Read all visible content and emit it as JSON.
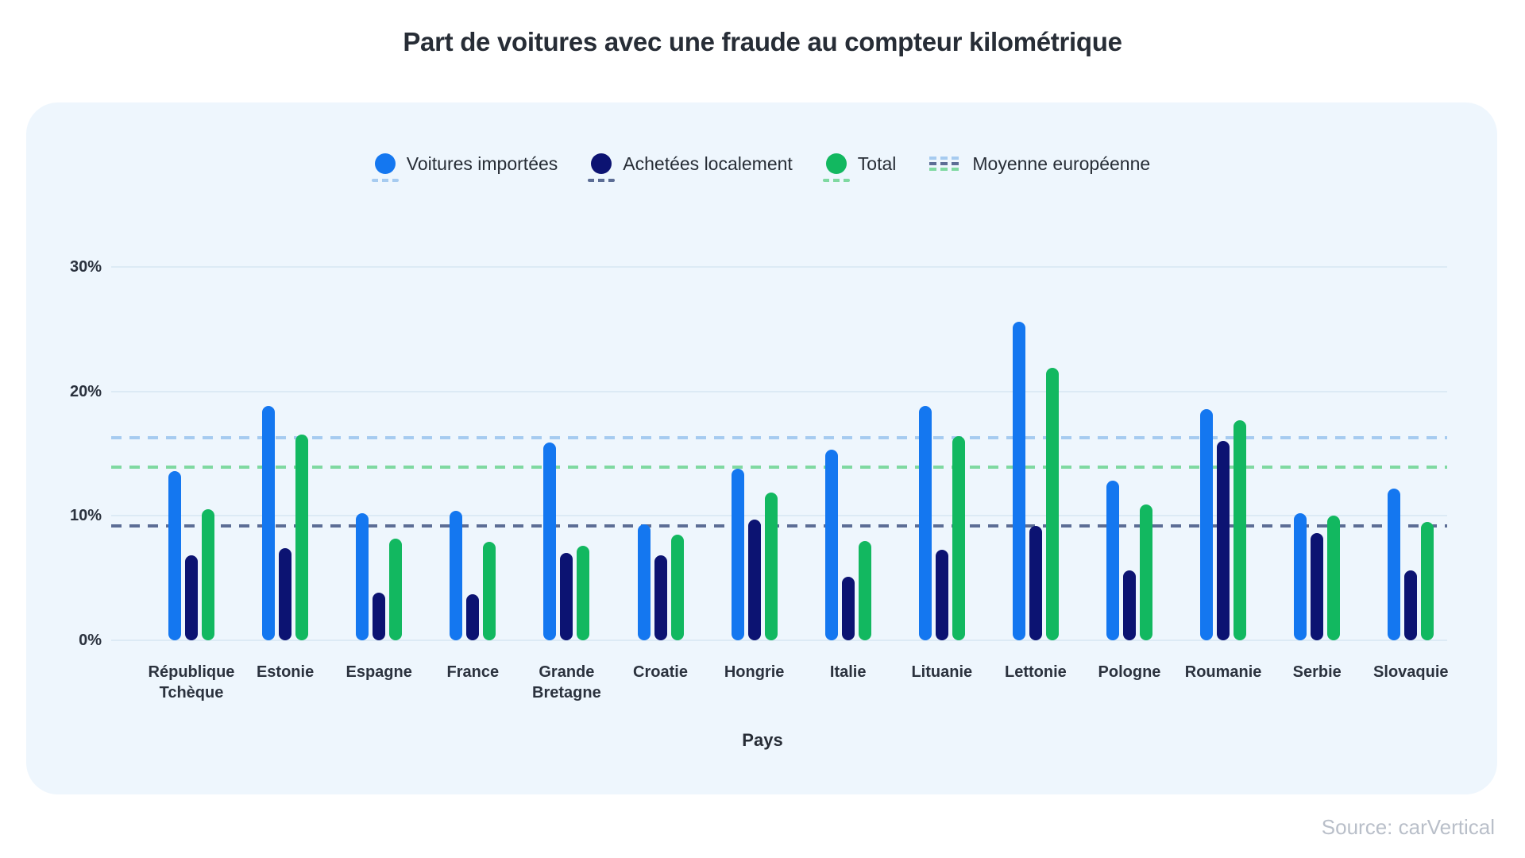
{
  "title": "Part de voitures avec une fraude au compteur kilométrique",
  "source": "Source: carVertical",
  "legend": {
    "imported_label": "Voitures importées",
    "local_label": "Achetées localement",
    "total_label": "Total",
    "average_label": "Moyenne européenne"
  },
  "colors": {
    "imported": "#1477f0",
    "local": "#0c1372",
    "total": "#12b860",
    "avg_imported": "#a6cbf0",
    "avg_total": "#7fd9a1",
    "avg_local": "#5c6d95",
    "grid": "#dceaf5",
    "card_bg": "#eef6fd",
    "title_text": "#272d36",
    "tick_text": "#2b323e",
    "source_text": "#b9bfc9"
  },
  "chart_data": {
    "type": "bar",
    "title": "Part de voitures avec une fraude au compteur kilométrique",
    "xlabel": "Pays",
    "ylabel": "",
    "ylim": [
      0,
      30
    ],
    "grid": true,
    "legend_position": "top",
    "ytick_values": [
      0,
      10,
      20,
      30
    ],
    "ytick_labels": [
      "0%",
      "10%",
      "20%",
      "30%"
    ],
    "categories": [
      "République Tchèque",
      "Estonie",
      "Espagne",
      "France",
      "Grande Bretagne",
      "Croatie",
      "Hongrie",
      "Italie",
      "Lituanie",
      "Lettonie",
      "Pologne",
      "Roumanie",
      "Serbie",
      "Slovaquie"
    ],
    "series": [
      {
        "name": "Voitures importées",
        "color": "#1477f0",
        "values": [
          13.6,
          18.8,
          10.2,
          10.4,
          15.9,
          9.3,
          13.8,
          15.3,
          18.8,
          25.6,
          12.8,
          18.6,
          10.2,
          12.2
        ]
      },
      {
        "name": "Achetées localement",
        "color": "#0c1372",
        "values": [
          6.8,
          7.4,
          3.8,
          3.7,
          7.0,
          6.8,
          9.7,
          5.1,
          7.3,
          9.2,
          5.6,
          16.0,
          8.6,
          5.6
        ]
      },
      {
        "name": "Total",
        "color": "#12b860",
        "values": [
          10.5,
          16.5,
          8.2,
          7.9,
          7.6,
          8.5,
          11.9,
          8.0,
          16.4,
          21.9,
          10.9,
          17.7,
          10.0,
          9.5
        ]
      }
    ],
    "eu_averages": [
      {
        "series": "Voitures importées",
        "value": 16.3,
        "color": "#a6cbf0"
      },
      {
        "series": "Total",
        "value": 13.9,
        "color": "#7fd9a1"
      },
      {
        "series": "Achetées localement",
        "value": 9.2,
        "color": "#5c6d95"
      }
    ]
  }
}
